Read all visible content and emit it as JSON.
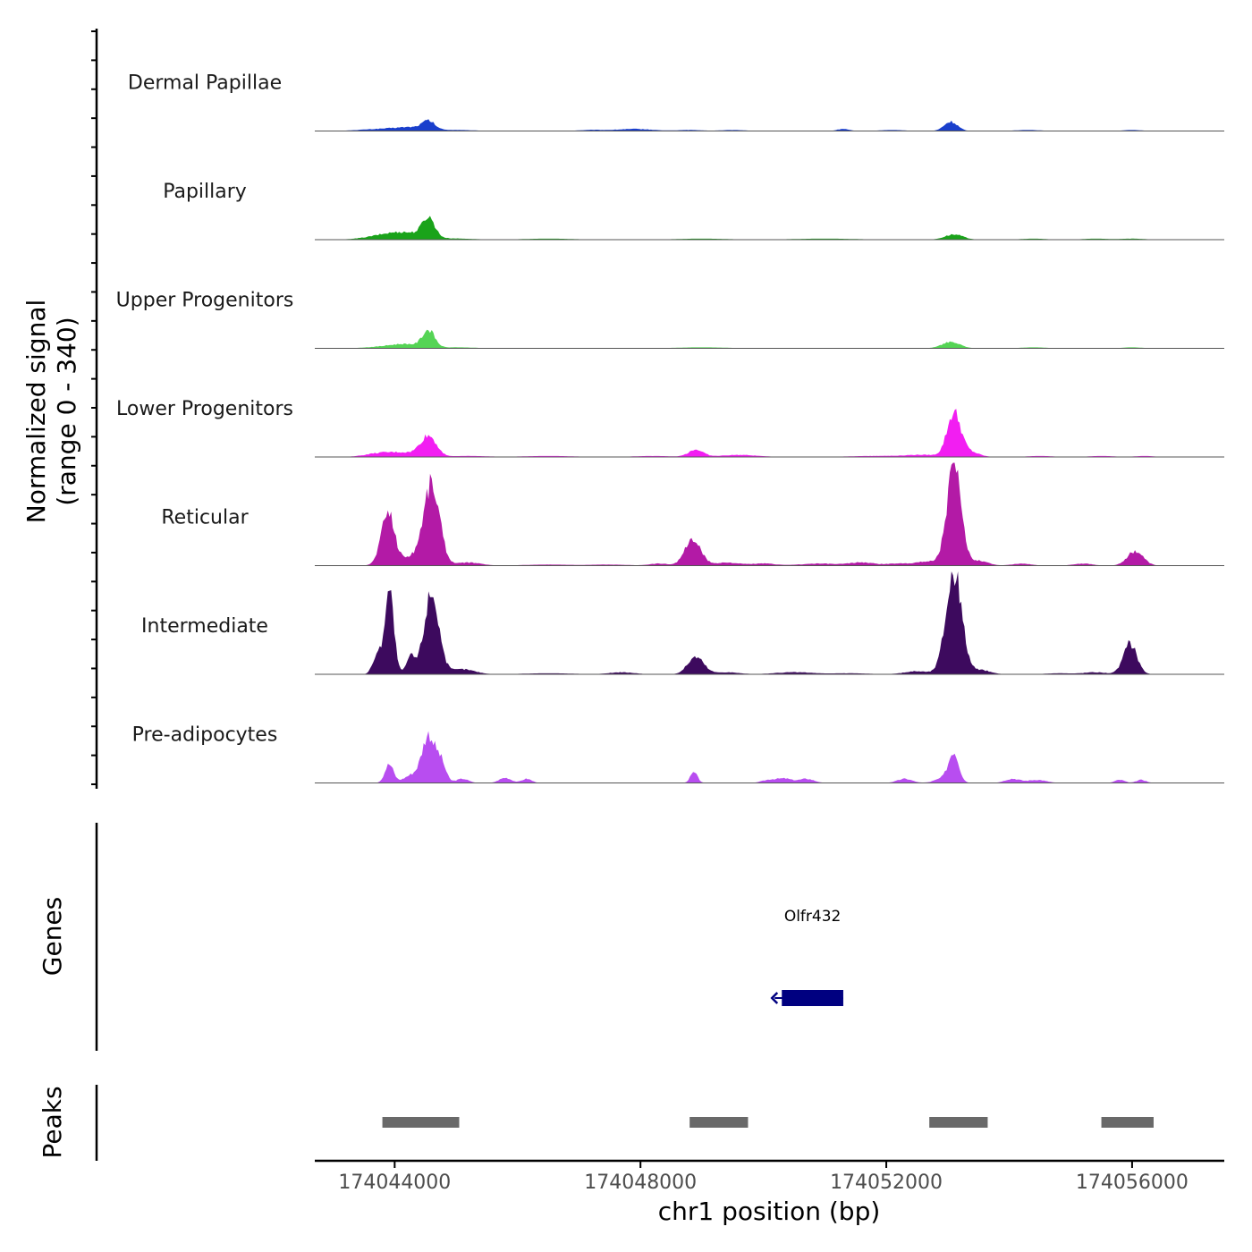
{
  "chart_data": {
    "type": "area",
    "title": "",
    "ylabel_line1": "Normalized signal",
    "ylabel_line2": "(range 0 - 340)",
    "xlabel": "chr1 position (bp)",
    "chromosome": "chr1",
    "xlim": [
      174042700,
      174057500
    ],
    "xticks": [
      174044000,
      174048000,
      174052000,
      174056000
    ],
    "xtick_labels": [
      "174044000",
      "174048000",
      "174052000",
      "174056000"
    ],
    "signal_range": [
      0,
      340
    ],
    "tracks": [
      {
        "name": "Dermal Papillae",
        "color": "#1a3fcc",
        "peaks": [
          [
            174043800,
            0.02,
            350
          ],
          [
            174044300,
            0.03,
            250
          ],
          [
            174044550,
            0.08,
            100
          ],
          [
            174045000,
            0.01,
            300
          ],
          [
            174047200,
            0.01,
            200
          ],
          [
            174047900,
            0.02,
            300
          ],
          [
            174048800,
            0.01,
            200
          ],
          [
            174049500,
            0.01,
            200
          ],
          [
            174051300,
            0.02,
            100
          ],
          [
            174052100,
            0.01,
            200
          ],
          [
            174053050,
            0.09,
            110
          ],
          [
            174054300,
            0.01,
            200
          ],
          [
            174056000,
            0.01,
            150
          ]
        ]
      },
      {
        "name": "Papillary",
        "color": "#1aa31a",
        "peaks": [
          [
            174043800,
            0.03,
            300
          ],
          [
            174044200,
            0.06,
            300
          ],
          [
            174044550,
            0.19,
            100
          ],
          [
            174045000,
            0.01,
            300
          ],
          [
            174046500,
            0.01,
            400
          ],
          [
            174049000,
            0.01,
            400
          ],
          [
            174051000,
            0.01,
            500
          ],
          [
            174053100,
            0.05,
            150
          ],
          [
            174054400,
            0.01,
            200
          ],
          [
            174055400,
            0.01,
            200
          ],
          [
            174056000,
            0.01,
            200
          ]
        ]
      },
      {
        "name": "Upper Progenitors",
        "color": "#55d455",
        "peaks": [
          [
            174043900,
            0.02,
            300
          ],
          [
            174044200,
            0.03,
            200
          ],
          [
            174044550,
            0.17,
            100
          ],
          [
            174045000,
            0.01,
            300
          ],
          [
            174049000,
            0.01,
            400
          ],
          [
            174053050,
            0.06,
            150
          ],
          [
            174054400,
            0.01,
            200
          ],
          [
            174056000,
            0.01,
            150
          ]
        ]
      },
      {
        "name": "Lower Progenitors",
        "color": "#f21ef2",
        "peaks": [
          [
            174043800,
            0.04,
            250
          ],
          [
            174044200,
            0.03,
            200
          ],
          [
            174044550,
            0.2,
            130
          ],
          [
            174045200,
            0.01,
            300
          ],
          [
            174046500,
            0.01,
            400
          ],
          [
            174048200,
            0.01,
            300
          ],
          [
            174048900,
            0.07,
            120
          ],
          [
            174049600,
            0.02,
            300
          ],
          [
            174051800,
            0.01,
            400
          ],
          [
            174052600,
            0.02,
            300
          ],
          [
            174053100,
            0.42,
            110
          ],
          [
            174053350,
            0.05,
            150
          ],
          [
            174054500,
            0.01,
            200
          ],
          [
            174055500,
            0.01,
            200
          ],
          [
            174056200,
            0.01,
            150
          ]
        ]
      },
      {
        "name": "Reticular",
        "color": "#b31aa6",
        "peaks": [
          [
            174043800,
            0.14,
            90
          ],
          [
            174043910,
            0.42,
            90
          ],
          [
            174044200,
            0.08,
            250
          ],
          [
            174044600,
            0.78,
            130
          ],
          [
            174045200,
            0.03,
            200
          ],
          [
            174046500,
            0.01,
            400
          ],
          [
            174047500,
            0.01,
            300
          ],
          [
            174048300,
            0.02,
            150
          ],
          [
            174048850,
            0.25,
            130
          ],
          [
            174049400,
            0.03,
            200
          ],
          [
            174050000,
            0.02,
            200
          ],
          [
            174050900,
            0.02,
            300
          ],
          [
            174051600,
            0.03,
            200
          ],
          [
            174052200,
            0.02,
            200
          ],
          [
            174052700,
            0.04,
            200
          ],
          [
            174053100,
            0.95,
            115
          ],
          [
            174053500,
            0.05,
            150
          ],
          [
            174054200,
            0.02,
            150
          ],
          [
            174055200,
            0.02,
            150
          ],
          [
            174056050,
            0.14,
            130
          ]
        ]
      },
      {
        "name": "Intermediate",
        "color": "#3d0a5e",
        "peaks": [
          [
            174043710,
            0.18,
            70
          ],
          [
            174043910,
            0.83,
            75
          ],
          [
            174044260,
            0.17,
            70
          ],
          [
            174044600,
            0.8,
            120
          ],
          [
            174045100,
            0.05,
            200
          ],
          [
            174046500,
            0.01,
            400
          ],
          [
            174047700,
            0.02,
            200
          ],
          [
            174048900,
            0.17,
            130
          ],
          [
            174049400,
            0.02,
            200
          ],
          [
            174050500,
            0.02,
            300
          ],
          [
            174051400,
            0.01,
            300
          ],
          [
            174052500,
            0.03,
            200
          ],
          [
            174053100,
            1.0,
            130
          ],
          [
            174053550,
            0.04,
            150
          ],
          [
            174054800,
            0.01,
            200
          ],
          [
            174055400,
            0.02,
            200
          ],
          [
            174055970,
            0.3,
            110
          ]
        ]
      },
      {
        "name": "Pre-adipocytes",
        "color": "#b84df0",
        "peaks": [
          [
            174043910,
            0.18,
            70
          ],
          [
            174044300,
            0.08,
            140
          ],
          [
            174044550,
            0.45,
            100
          ],
          [
            174044750,
            0.2,
            80
          ],
          [
            174045100,
            0.04,
            100
          ],
          [
            174045800,
            0.05,
            100
          ],
          [
            174046150,
            0.04,
            80
          ],
          [
            174048870,
            0.1,
            60
          ],
          [
            174050100,
            0.03,
            120
          ],
          [
            174050350,
            0.04,
            120
          ],
          [
            174050700,
            0.04,
            120
          ],
          [
            174052300,
            0.04,
            120
          ],
          [
            174052950,
            0.05,
            140
          ],
          [
            174053100,
            0.28,
            80
          ],
          [
            174054050,
            0.04,
            120
          ],
          [
            174054450,
            0.03,
            150
          ],
          [
            174055800,
            0.03,
            80
          ],
          [
            174056150,
            0.03,
            80
          ]
        ]
      }
    ],
    "genes_label": "Genes",
    "genes": [
      {
        "name": "Olfr432",
        "start": 174050300,
        "end": 174051300,
        "strand": "-",
        "color": "#000080"
      }
    ],
    "peaks_label": "Peaks",
    "peak_regions": [
      [
        174043800,
        174045050
      ],
      [
        174048800,
        174049750
      ],
      [
        174052700,
        174053650
      ],
      [
        174055500,
        174056350
      ]
    ],
    "peak_color": "#696969"
  }
}
